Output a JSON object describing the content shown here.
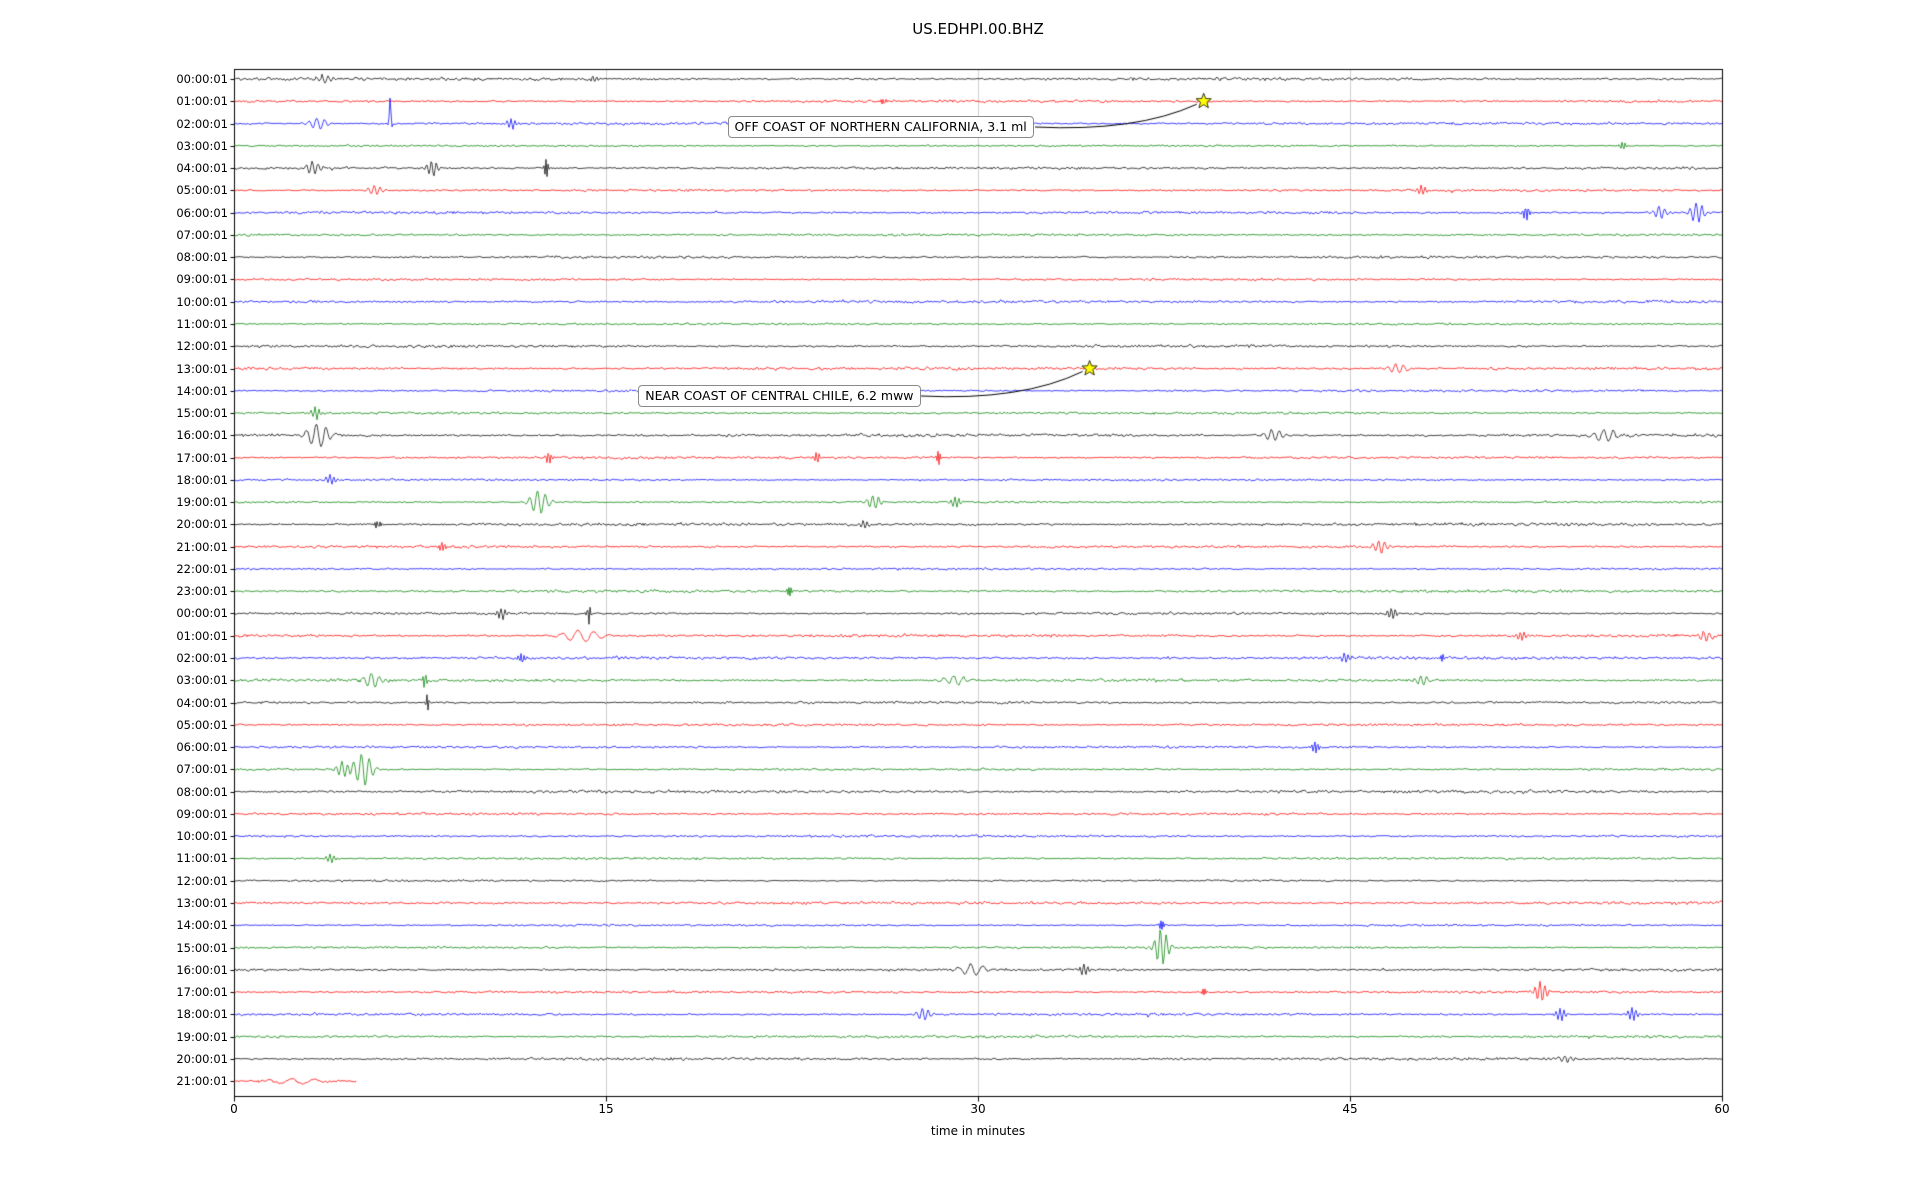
{
  "title": "US.EDHPI.00.BHZ",
  "chart_data": {
    "type": "line",
    "variant": "seismogram-dayplot",
    "title": "US.EDHPI.00.BHZ",
    "xlabel": "time in minutes",
    "ylabel": "",
    "x_range": [
      0,
      60
    ],
    "x_ticks": [
      0,
      15,
      30,
      45,
      60
    ],
    "grid": "vertical-only",
    "color_cycle": [
      "#000000",
      "#ff0000",
      "#0000ff",
      "#008000"
    ],
    "rows": [
      "00:00:01",
      "01:00:01",
      "02:00:01",
      "03:00:01",
      "04:00:01",
      "05:00:01",
      "06:00:01",
      "07:00:01",
      "08:00:01",
      "09:00:01",
      "10:00:01",
      "11:00:01",
      "12:00:01",
      "13:00:01",
      "14:00:01",
      "15:00:01",
      "16:00:01",
      "17:00:01",
      "18:00:01",
      "19:00:01",
      "20:00:01",
      "21:00:01",
      "22:00:01",
      "23:00:01",
      "00:00:01",
      "01:00:01",
      "02:00:01",
      "03:00:01",
      "04:00:01",
      "05:00:01",
      "06:00:01",
      "07:00:01",
      "08:00:01",
      "09:00:01",
      "10:00:01",
      "11:00:01",
      "12:00:01",
      "13:00:01",
      "14:00:01",
      "15:00:01",
      "16:00:01",
      "17:00:01",
      "18:00:01",
      "19:00:01",
      "20:00:01",
      "21:00:01"
    ],
    "partial_last_row": {
      "row": 45,
      "duration_minutes": 4.9
    },
    "annotations": [
      {
        "text": "OFF COAST OF NORTHERN CALIFORNIA, 3.1 ml",
        "marker": "yellow-star",
        "star_row": 1,
        "star_minute": 39.1,
        "box_minute": 19.9,
        "box_row": 2.2
      },
      {
        "text": "NEAR COAST OF CENTRAL CHILE, 6.2 mww",
        "marker": "yellow-star",
        "star_row": 13,
        "star_minute": 34.5,
        "box_minute": 16.3,
        "box_row": 14.3
      }
    ],
    "events": [
      {
        "row": 0,
        "minute": 3.6,
        "amp": 4,
        "width": 0.3
      },
      {
        "row": 0,
        "minute": 14.5,
        "amp": 3,
        "width": 0.2
      },
      {
        "row": 1,
        "minute": 26.2,
        "amp": 4,
        "width": 0.12
      },
      {
        "row": 1,
        "minute": 39.1,
        "amp": 3,
        "width": 0.2
      },
      {
        "row": 2,
        "minute": 3.4,
        "amp": 6,
        "width": 0.4
      },
      {
        "row": 2,
        "minute": 6.3,
        "amp": 26,
        "width": 0.06
      },
      {
        "row": 2,
        "minute": 11.2,
        "amp": 5,
        "width": 0.2
      },
      {
        "row": 3,
        "minute": 56.0,
        "amp": 4,
        "width": 0.15
      },
      {
        "row": 4,
        "minute": 3.2,
        "amp": 7,
        "width": 0.3
      },
      {
        "row": 4,
        "minute": 8.0,
        "amp": 8,
        "width": 0.25
      },
      {
        "row": 4,
        "minute": 12.6,
        "amp": 9,
        "width": 0.12
      },
      {
        "row": 5,
        "minute": 5.7,
        "amp": 5,
        "width": 0.3
      },
      {
        "row": 5,
        "minute": 47.9,
        "amp": 5,
        "width": 0.2
      },
      {
        "row": 6,
        "minute": 52.1,
        "amp": 8,
        "width": 0.15
      },
      {
        "row": 6,
        "minute": 57.5,
        "amp": 6,
        "width": 0.3
      },
      {
        "row": 6,
        "minute": 59.0,
        "amp": 10,
        "width": 0.3
      },
      {
        "row": 13,
        "minute": 46.9,
        "amp": 5,
        "width": 0.4
      },
      {
        "row": 15,
        "minute": 3.3,
        "amp": 6,
        "width": 0.2
      },
      {
        "row": 16,
        "minute": 3.4,
        "amp": 12,
        "width": 0.5
      },
      {
        "row": 16,
        "minute": 41.9,
        "amp": 6,
        "width": 0.4
      },
      {
        "row": 16,
        "minute": 55.3,
        "amp": 6,
        "width": 0.5
      },
      {
        "row": 17,
        "minute": 12.7,
        "amp": 6,
        "width": 0.15
      },
      {
        "row": 17,
        "minute": 23.5,
        "amp": 5,
        "width": 0.15
      },
      {
        "row": 17,
        "minute": 28.4,
        "amp": 7,
        "width": 0.12
      },
      {
        "row": 18,
        "minute": 3.9,
        "amp": 5,
        "width": 0.2
      },
      {
        "row": 19,
        "minute": 12.3,
        "amp": 12,
        "width": 0.4
      },
      {
        "row": 19,
        "minute": 25.8,
        "amp": 7,
        "width": 0.3
      },
      {
        "row": 19,
        "minute": 29.1,
        "amp": 6,
        "width": 0.2
      },
      {
        "row": 20,
        "minute": 5.8,
        "amp": 6,
        "width": 0.12
      },
      {
        "row": 20,
        "minute": 25.4,
        "amp": 4,
        "width": 0.2
      },
      {
        "row": 21,
        "minute": 8.4,
        "amp": 5,
        "width": 0.15
      },
      {
        "row": 21,
        "minute": 46.2,
        "amp": 7,
        "width": 0.3
      },
      {
        "row": 23,
        "minute": 22.4,
        "amp": 5,
        "width": 0.1
      },
      {
        "row": 24,
        "minute": 10.8,
        "amp": 6,
        "width": 0.2
      },
      {
        "row": 24,
        "minute": 14.3,
        "amp": 12,
        "width": 0.08
      },
      {
        "row": 24,
        "minute": 46.7,
        "amp": 6,
        "width": 0.2
      },
      {
        "row": 25,
        "minute": 14.0,
        "amp": 6,
        "width": 0.8
      },
      {
        "row": 25,
        "minute": 51.9,
        "amp": 5,
        "width": 0.2
      },
      {
        "row": 25,
        "minute": 59.3,
        "amp": 5,
        "width": 0.3
      },
      {
        "row": 26,
        "minute": 11.6,
        "amp": 5,
        "width": 0.15
      },
      {
        "row": 26,
        "minute": 44.8,
        "amp": 5,
        "width": 0.2
      },
      {
        "row": 26,
        "minute": 48.7,
        "amp": 6,
        "width": 0.1
      },
      {
        "row": 27,
        "minute": 5.6,
        "amp": 7,
        "width": 0.4
      },
      {
        "row": 27,
        "minute": 7.7,
        "amp": 10,
        "width": 0.08
      },
      {
        "row": 27,
        "minute": 29.1,
        "amp": 5,
        "width": 0.5
      },
      {
        "row": 27,
        "minute": 47.9,
        "amp": 5,
        "width": 0.3
      },
      {
        "row": 28,
        "minute": 7.8,
        "amp": 9,
        "width": 0.08
      },
      {
        "row": 30,
        "minute": 43.6,
        "amp": 7,
        "width": 0.15
      },
      {
        "row": 31,
        "minute": 4.4,
        "amp": 8,
        "width": 0.3
      },
      {
        "row": 31,
        "minute": 5.2,
        "amp": 16,
        "width": 0.4
      },
      {
        "row": 35,
        "minute": 3.9,
        "amp": 4,
        "width": 0.2
      },
      {
        "row": 38,
        "minute": 37.4,
        "amp": 5,
        "width": 0.1
      },
      {
        "row": 39,
        "minute": 37.4,
        "amp": 18,
        "width": 0.3
      },
      {
        "row": 40,
        "minute": 29.8,
        "amp": 6,
        "width": 0.6
      },
      {
        "row": 40,
        "minute": 34.3,
        "amp": 6,
        "width": 0.2
      },
      {
        "row": 41,
        "minute": 39.1,
        "amp": 5,
        "width": 0.1
      },
      {
        "row": 41,
        "minute": 52.7,
        "amp": 10,
        "width": 0.25
      },
      {
        "row": 42,
        "minute": 27.8,
        "amp": 6,
        "width": 0.3
      },
      {
        "row": 42,
        "minute": 53.5,
        "amp": 7,
        "width": 0.2
      },
      {
        "row": 42,
        "minute": 56.4,
        "amp": 7,
        "width": 0.2
      },
      {
        "row": 44,
        "minute": 53.7,
        "amp": 4,
        "width": 0.3
      },
      {
        "row": 45,
        "minute": 2.5,
        "amp": 2.5,
        "width": 1.2
      }
    ]
  }
}
